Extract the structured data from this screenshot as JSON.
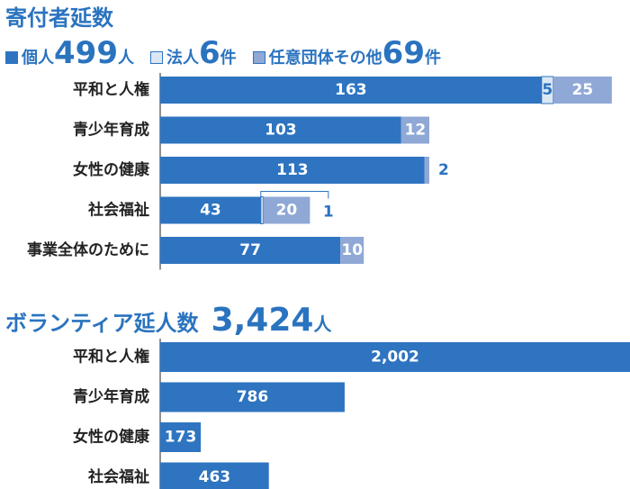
{
  "colors": {
    "individual": "#2e74c0",
    "corporate": "#dce7f4",
    "corporate_border": "#2e74c0",
    "other": "#8fa8d6",
    "axis": "#222222"
  },
  "donors": {
    "title": "寄付者延数",
    "legend": [
      {
        "label": "個人",
        "value": "499",
        "unit": "人",
        "icon": "square-swatch"
      },
      {
        "label": "法人",
        "value": "6",
        "unit": "件",
        "icon": "square-swatch"
      },
      {
        "label": "任意団体その他",
        "value": "69",
        "unit": "件",
        "icon": "square-swatch"
      }
    ]
  },
  "volunteers": {
    "title": "ボランティア延人数",
    "total": "3,424",
    "unit": "人"
  },
  "chart_data": [
    {
      "type": "bar",
      "orientation": "horizontal",
      "stacked": true,
      "title": "寄付者延数",
      "categories": [
        "平和と人権",
        "青少年育成",
        "女性の健康",
        "社会福祉",
        "事業全体のために"
      ],
      "series": [
        {
          "name": "個人",
          "values": [
            163,
            103,
            113,
            43,
            77
          ]
        },
        {
          "name": "法人",
          "values": [
            5,
            0,
            0,
            1,
            0
          ]
        },
        {
          "name": "任意団体その他",
          "values": [
            25,
            12,
            2,
            20,
            10
          ]
        }
      ],
      "grid": false
    },
    {
      "type": "bar",
      "orientation": "horizontal",
      "title": "ボランティア延人数",
      "categories": [
        "平和と人権",
        "青少年育成",
        "女性の健康",
        "社会福祉"
      ],
      "values": [
        2002,
        786,
        173,
        463
      ],
      "value_labels": [
        "2,002",
        "786",
        "173",
        "463"
      ],
      "grid": false
    }
  ]
}
